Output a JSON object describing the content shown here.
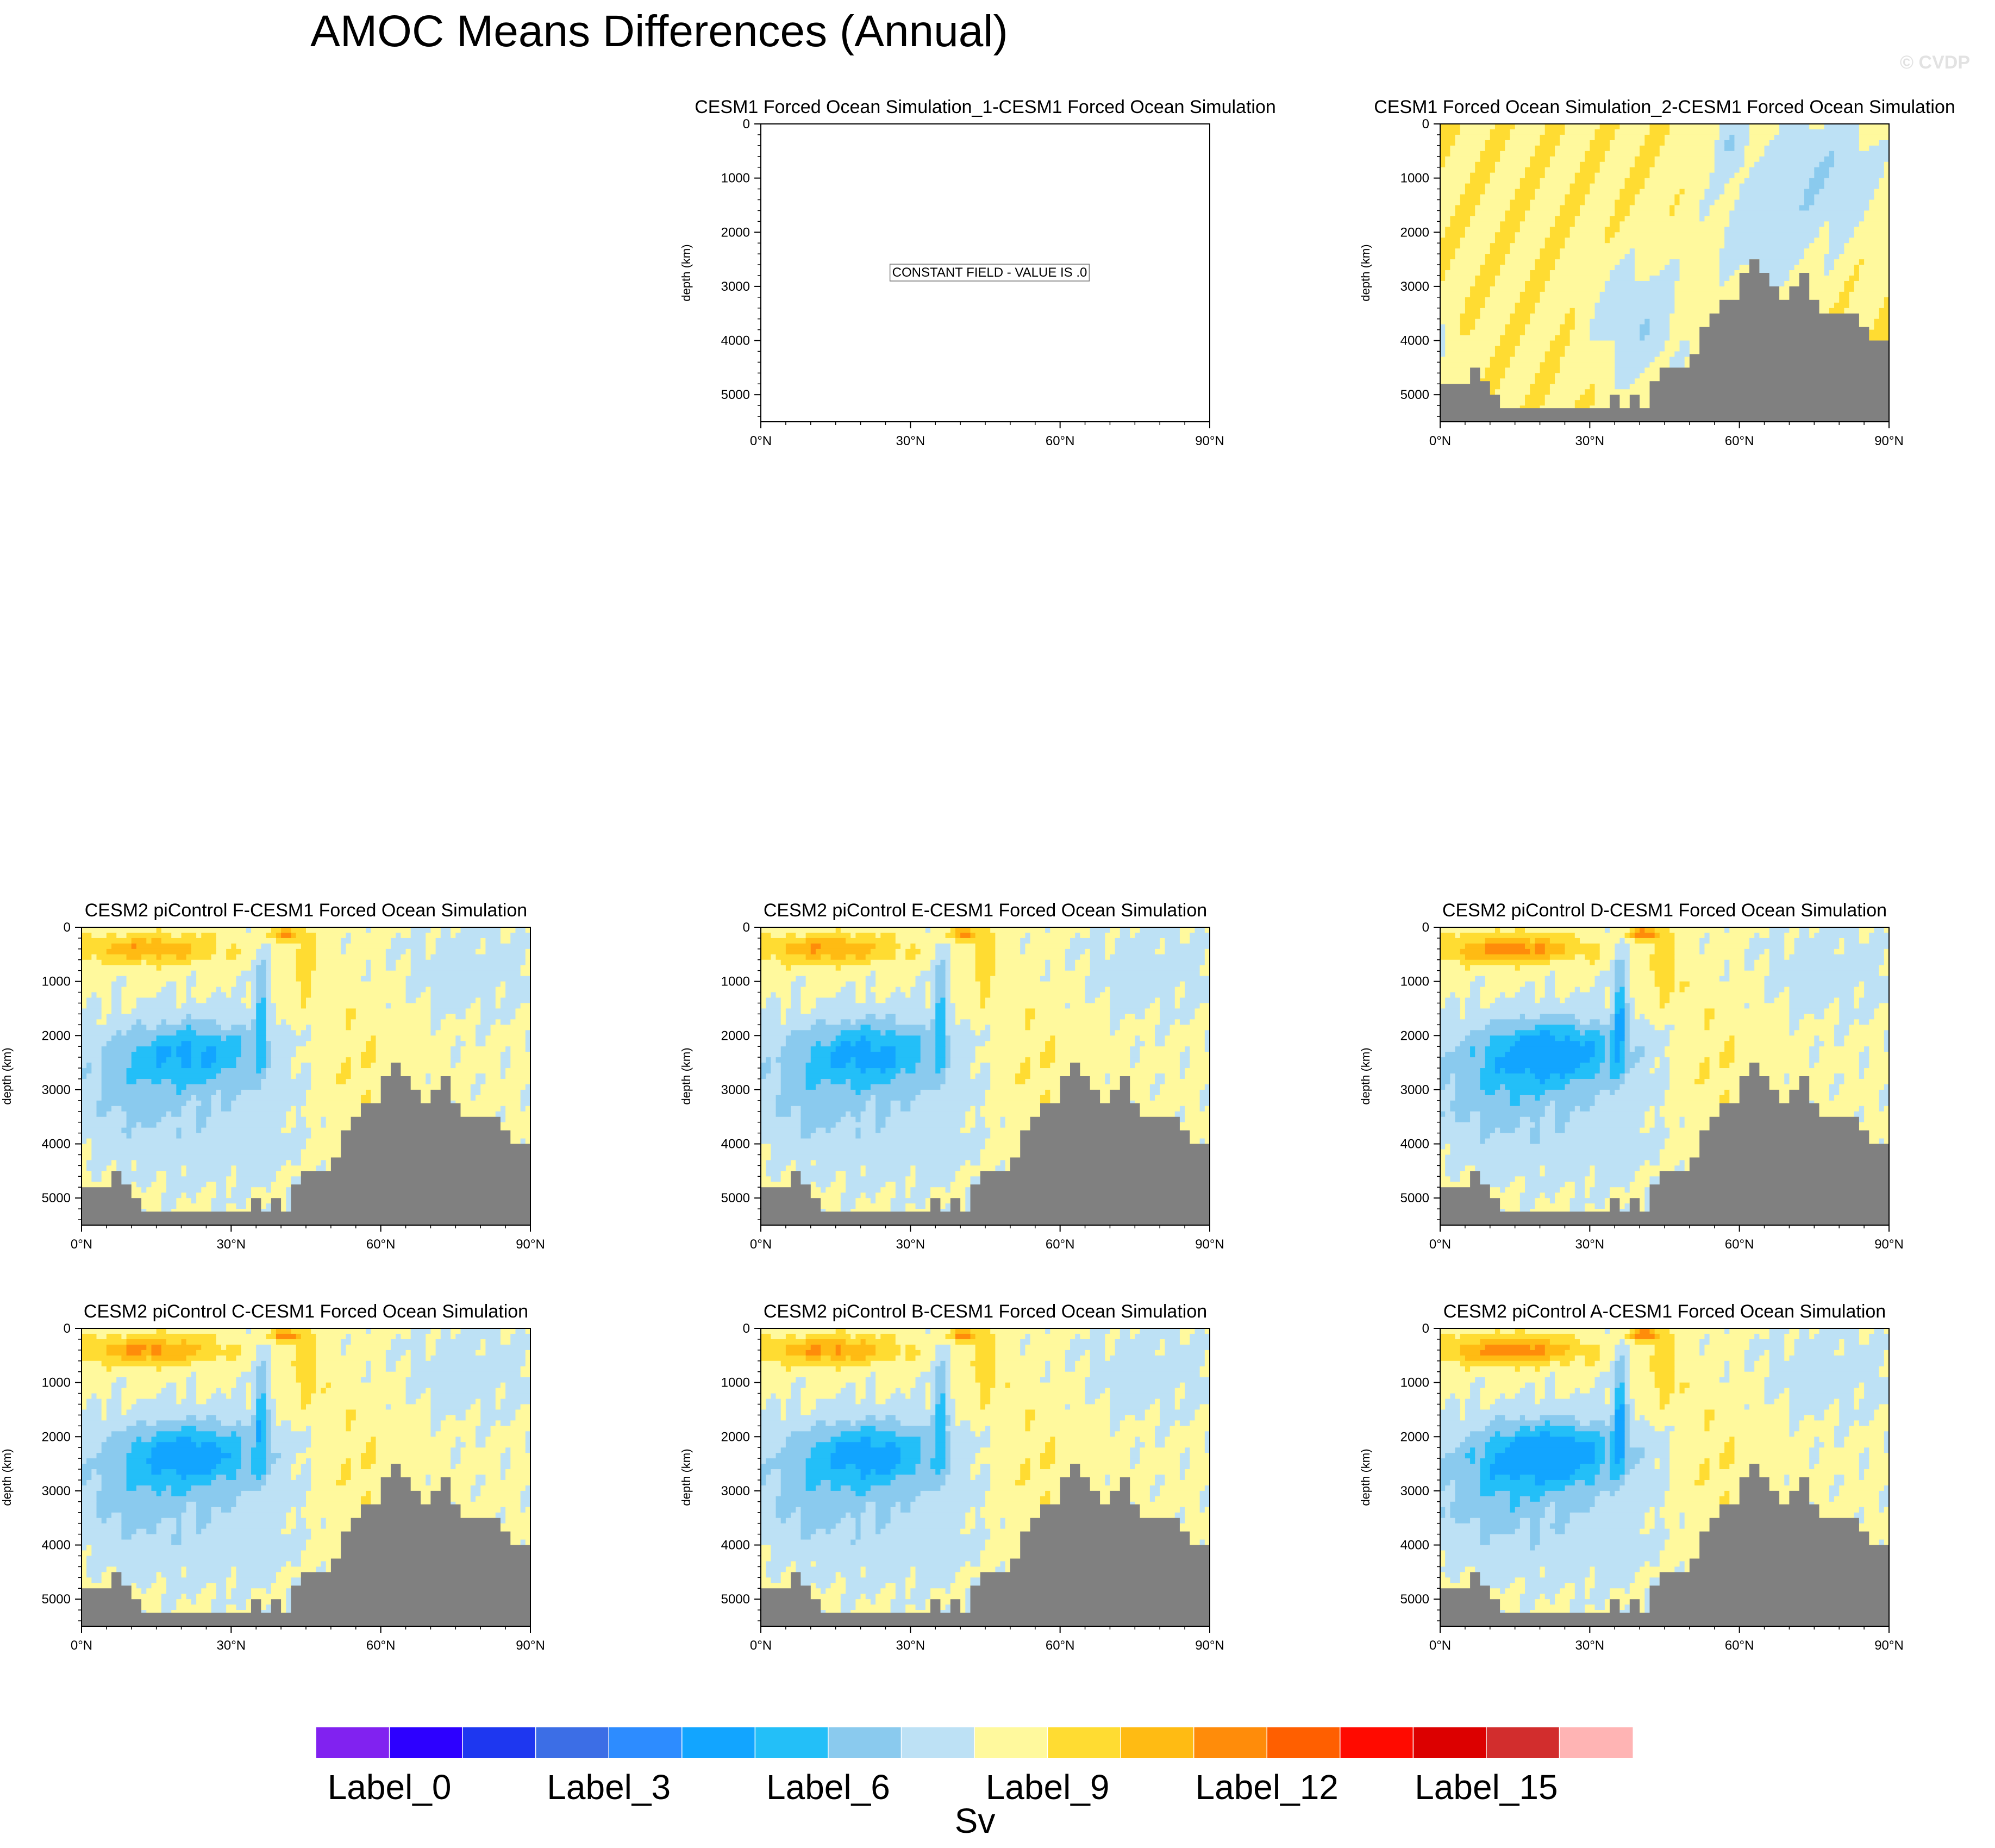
{
  "page": {
    "title": "AMOC Means Differences (Annual)",
    "watermark": "© CVDP"
  },
  "chart_data": {
    "type": "heatmap",
    "title": "AMOC Means Differences (Annual)",
    "xlabel": "",
    "ylabel": "depth (km)",
    "x_ticks": [
      "0°N",
      "30°N",
      "60°N",
      "90°N"
    ],
    "x_tick_values": [
      0,
      30,
      60,
      90
    ],
    "xlim": [
      0,
      90
    ],
    "y_ticks": [
      "0",
      "1000",
      "2000",
      "3000",
      "4000",
      "5000"
    ],
    "y_tick_values": [
      0,
      1000,
      2000,
      3000,
      4000,
      5000
    ],
    "ylim": [
      5500,
      0
    ],
    "land_color": "#808080",
    "bathymetry": {
      "lat": [
        0,
        2,
        4,
        6,
        8,
        10,
        12,
        14,
        16,
        18,
        20,
        22,
        24,
        26,
        28,
        30,
        32,
        34,
        36,
        38,
        40,
        42,
        44,
        46,
        48,
        50,
        52,
        54,
        56,
        58,
        60,
        62,
        64,
        66,
        68,
        70,
        72,
        74,
        76,
        78,
        80,
        82,
        84,
        86,
        88,
        90
      ],
      "depth": [
        4800,
        4800,
        4800,
        4500,
        4750,
        5000,
        5250,
        5250,
        5250,
        5250,
        5250,
        5250,
        5250,
        5250,
        5250,
        5250,
        5250,
        5000,
        5250,
        5000,
        5250,
        4750,
        4500,
        4500,
        4500,
        4250,
        3750,
        3500,
        3250,
        3250,
        2750,
        2500,
        2750,
        3000,
        3250,
        3000,
        2750,
        3250,
        3500,
        3500,
        3500,
        3500,
        3750,
        4000,
        4000,
        4000
      ]
    },
    "panels": [
      {
        "id": "p1",
        "title": "CESM1 Forced Ocean Simulation_1-CESM1 Forced Ocean Simulation",
        "constant_field": true,
        "note": "CONSTANT FIELD - VALUE IS .0"
      },
      {
        "id": "p2",
        "title": "CESM1 Forced Ocean Simulation_2-CESM1 Forced Ocean Simulation",
        "pattern": "small"
      },
      {
        "id": "p3",
        "title": "CESM2 piControl F-CESM1 Forced Ocean Simulation",
        "pattern": "strong",
        "intensity": 1.0
      },
      {
        "id": "p4",
        "title": "CESM2 piControl E-CESM1 Forced Ocean Simulation",
        "pattern": "strong",
        "intensity": 1.05
      },
      {
        "id": "p5",
        "title": "CESM2 piControl D-CESM1 Forced Ocean Simulation",
        "pattern": "strong",
        "intensity": 1.25
      },
      {
        "id": "p6",
        "title": "CESM2 piControl C-CESM1 Forced Ocean Simulation",
        "pattern": "strong",
        "intensity": 1.15
      },
      {
        "id": "p7",
        "title": "CESM2 piControl B-CESM1 Forced Ocean Simulation",
        "pattern": "strong",
        "intensity": 1.1
      },
      {
        "id": "p8",
        "title": "CESM2 piControl A-CESM1 Forced Ocean Simulation",
        "pattern": "strong",
        "intensity": 1.3
      }
    ],
    "colorbar": {
      "colors": [
        "#8122f0",
        "#2d00ff",
        "#1e37f0",
        "#3c6ee6",
        "#2d8cff",
        "#12a5ff",
        "#23bff8",
        "#8acaee",
        "#bde1f5",
        "#fff99d",
        "#ffdc32",
        "#ffbb13",
        "#ff8c0a",
        "#ff5f00",
        "#ff0a00",
        "#dc0000",
        "#d22d2d",
        "#ffb4b4"
      ],
      "labels": [
        "Label_0",
        "Label_3",
        "Label_6",
        "Label_9",
        "Label_12",
        "Label_15"
      ],
      "label_box_index": [
        1,
        4,
        7,
        10,
        13,
        16
      ],
      "units": "Sv"
    }
  }
}
